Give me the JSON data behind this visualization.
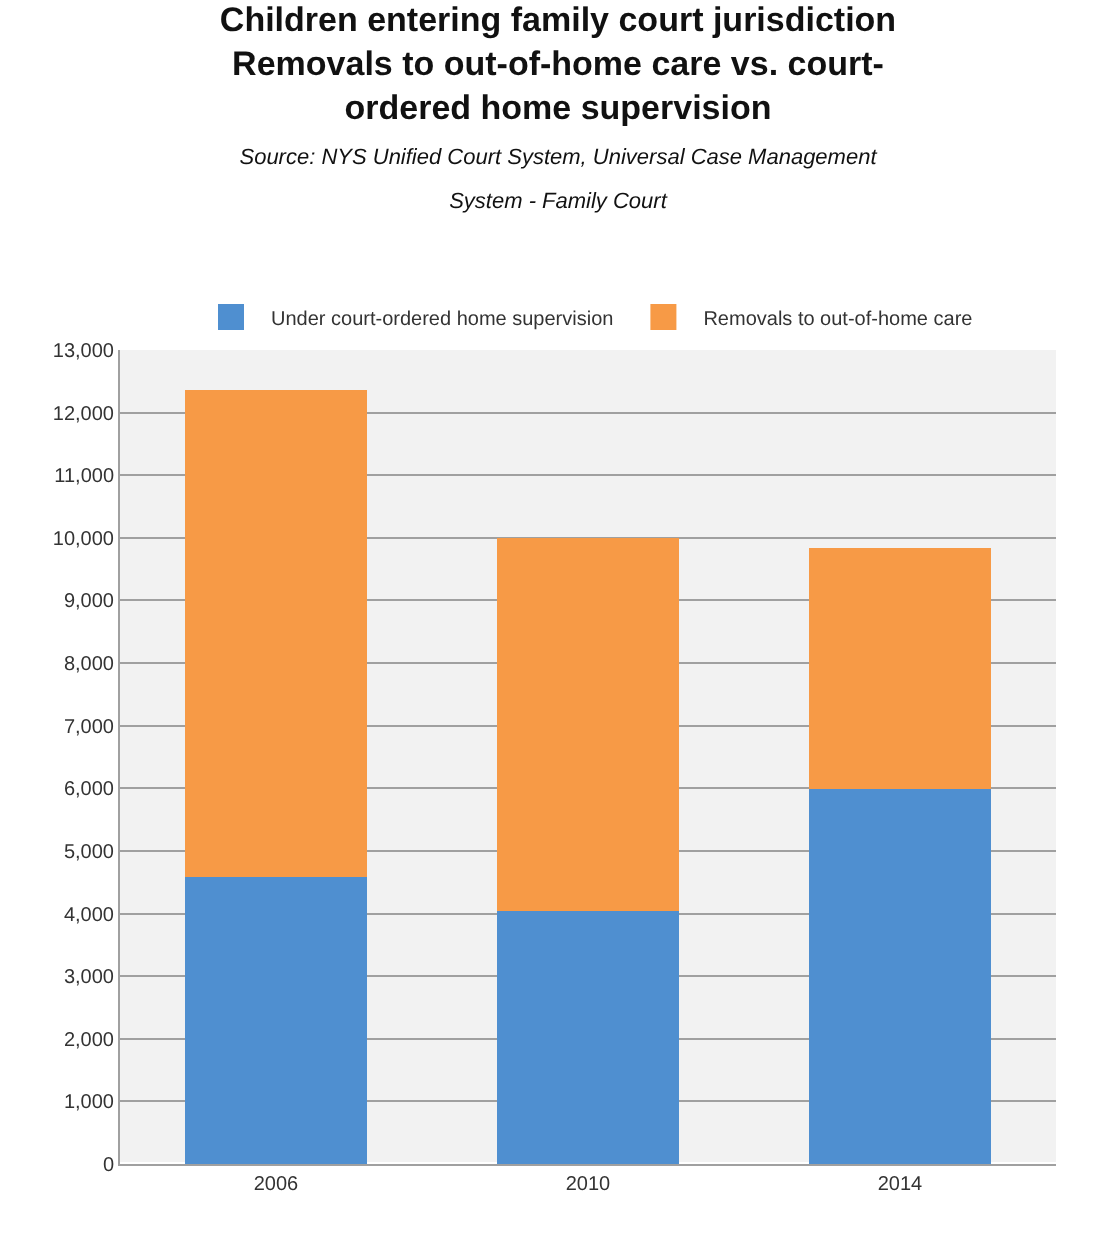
{
  "chart_data": {
    "type": "bar",
    "title": "Children entering family court jurisdiction\nRemovals to out-of-home care vs. court-\nordered home supervision",
    "subtitle": "Source: NYS Unified Court System, Universal Case Management\nSystem - Family Court",
    "categories": [
      "2006",
      "2010",
      "2014"
    ],
    "stacked": true,
    "series": [
      {
        "name": "Under court-ordered home supervision",
        "color": "#4f8fd0",
        "values": [
          4600,
          4050,
          6000
        ]
      },
      {
        "name": "Removals to out-of-home care",
        "color": "#f79a46",
        "values": [
          7750,
          5930,
          3830
        ]
      }
    ],
    "ylim": [
      0,
      13000
    ],
    "yticks": [
      {
        "value": 0,
        "label": "0"
      },
      {
        "value": 1000,
        "label": "1,000"
      },
      {
        "value": 2000,
        "label": "2,000"
      },
      {
        "value": 3000,
        "label": "3,000"
      },
      {
        "value": 4000,
        "label": "4,000"
      },
      {
        "value": 5000,
        "label": "5,000"
      },
      {
        "value": 6000,
        "label": "6,000"
      },
      {
        "value": 7000,
        "label": "7,000"
      },
      {
        "value": 8000,
        "label": "8,000"
      },
      {
        "value": 9000,
        "label": "9,000"
      },
      {
        "value": 10000,
        "label": "10,000"
      },
      {
        "value": 11000,
        "label": "11,000"
      },
      {
        "value": 12000,
        "label": "12,000"
      },
      {
        "value": 13000,
        "label": "13,000"
      }
    ],
    "grid": "y",
    "legend": "top"
  }
}
